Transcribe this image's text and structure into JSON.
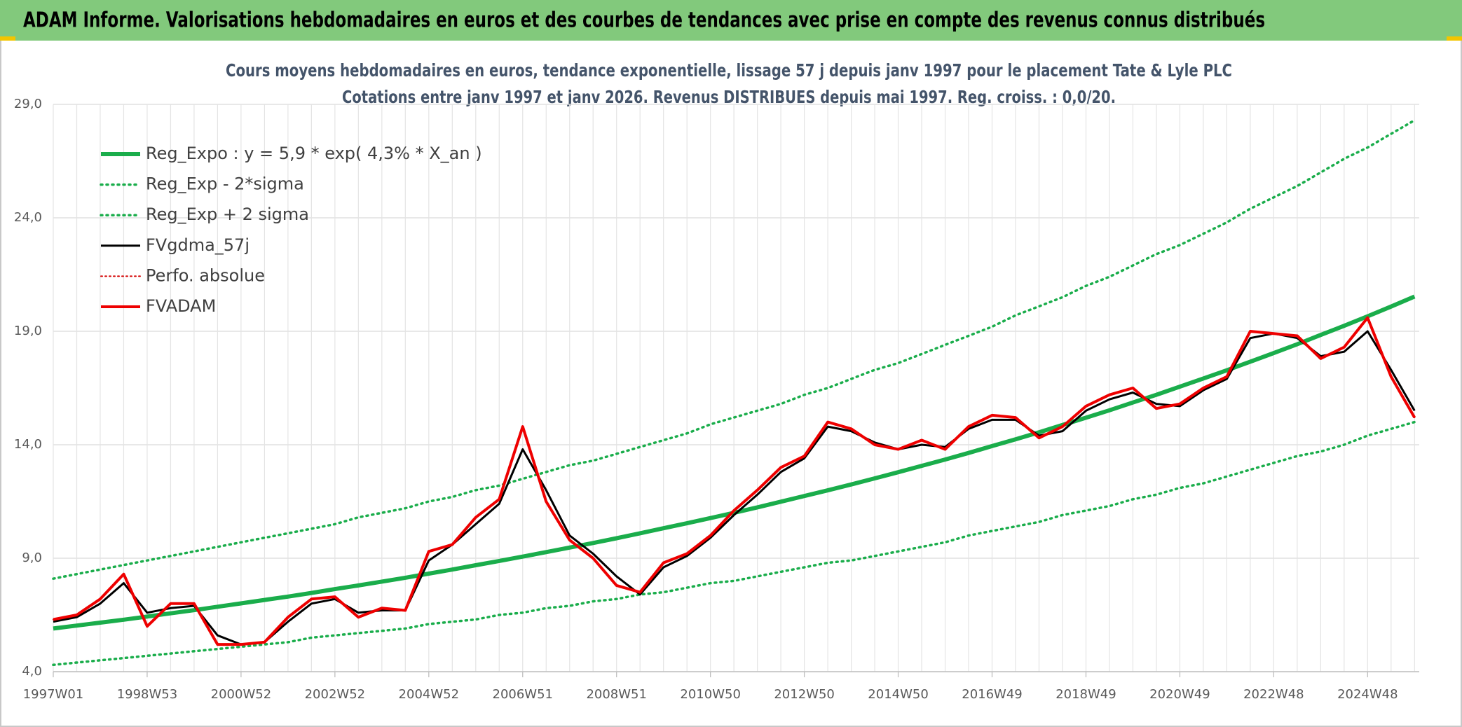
{
  "header": {
    "title": "ADAM Informe. Valorisations hebdomadaires en euros et des courbes de tendances avec prise en compte des revenus connus distribués"
  },
  "chart_data": {
    "type": "line",
    "title": "Cours moyens hebdomadaires en euros, tendance exponentielle, lissage 57 j depuis janv 1997 pour le placement Tate & Lyle PLC",
    "subtitle": "Cotations entre janv 1997 et janv 2026. Revenus DISTRIBUES depuis mai 1997. Reg. croiss. : 0,0/20.",
    "categories": [
      "1997W01",
      null,
      null,
      null,
      "1998W53",
      null,
      null,
      null,
      "2000W52",
      null,
      null,
      null,
      "2002W52",
      null,
      null,
      null,
      "2004W52",
      null,
      null,
      null,
      "2006W51",
      null,
      null,
      null,
      "2008W51",
      null,
      null,
      null,
      "2010W50",
      null,
      null,
      null,
      "2012W50",
      null,
      null,
      null,
      "2014W50",
      null,
      null,
      null,
      "2016W49",
      null,
      null,
      null,
      "2018W49",
      null,
      null,
      null,
      "2020W49",
      null,
      null,
      null,
      "2022W48",
      null,
      null,
      null,
      "2024W48",
      null,
      null
    ],
    "ylim": [
      4,
      29
    ],
    "yticks": [
      {
        "value": 4,
        "label": "4,0"
      },
      {
        "value": 9,
        "label": "9,0"
      },
      {
        "value": 14,
        "label": "14,0"
      },
      {
        "value": 19,
        "label": "19,0"
      },
      {
        "value": 24,
        "label": "24,0"
      },
      {
        "value": 29,
        "label": "29,0"
      }
    ],
    "grid": true,
    "legend": "upper left",
    "series": [
      {
        "name": "Reg_Expo : y = 5,9 * exp( 4,3% *  X_an )",
        "color": "#1aad4b",
        "width": 6,
        "dash": false,
        "values": [
          5.9,
          6.03,
          6.16,
          6.29,
          6.43,
          6.57,
          6.71,
          6.86,
          7.01,
          7.16,
          7.31,
          7.47,
          7.64,
          7.8,
          7.97,
          8.14,
          8.32,
          8.5,
          8.69,
          8.88,
          9.07,
          9.27,
          9.47,
          9.67,
          9.88,
          10.1,
          10.32,
          10.54,
          10.77,
          11.0,
          11.24,
          11.49,
          11.74,
          11.99,
          12.25,
          12.52,
          12.79,
          13.07,
          13.35,
          13.64,
          13.94,
          14.24,
          14.55,
          14.87,
          15.19,
          15.52,
          15.86,
          16.2,
          16.56,
          16.92,
          17.28,
          17.66,
          18.04,
          18.43,
          18.84,
          19.24,
          19.66,
          20.09,
          20.53
        ]
      },
      {
        "name": "Reg_Exp - 2*sigma",
        "color": "#1aad4b",
        "width": 3.5,
        "dash": true,
        "values": [
          4.3,
          4.4,
          4.5,
          4.6,
          4.7,
          4.8,
          4.9,
          5.0,
          5.1,
          5.2,
          5.3,
          5.5,
          5.6,
          5.7,
          5.8,
          5.9,
          6.1,
          6.2,
          6.3,
          6.5,
          6.6,
          6.8,
          6.9,
          7.1,
          7.2,
          7.4,
          7.5,
          7.7,
          7.9,
          8.0,
          8.2,
          8.4,
          8.6,
          8.8,
          8.9,
          9.1,
          9.3,
          9.5,
          9.7,
          10.0,
          10.2,
          10.4,
          10.6,
          10.9,
          11.1,
          11.3,
          11.6,
          11.8,
          12.1,
          12.3,
          12.6,
          12.9,
          13.2,
          13.5,
          13.7,
          14.0,
          14.4,
          14.7,
          15.0
        ]
      },
      {
        "name": "Reg_Exp + 2 sigma",
        "color": "#1aad4b",
        "width": 3.5,
        "dash": true,
        "values": [
          8.1,
          8.3,
          8.5,
          8.7,
          8.9,
          9.1,
          9.3,
          9.5,
          9.7,
          9.9,
          10.1,
          10.3,
          10.5,
          10.8,
          11.0,
          11.2,
          11.5,
          11.7,
          12.0,
          12.2,
          12.5,
          12.8,
          13.1,
          13.3,
          13.6,
          13.9,
          14.2,
          14.5,
          14.9,
          15.2,
          15.5,
          15.8,
          16.2,
          16.5,
          16.9,
          17.3,
          17.6,
          18.0,
          18.4,
          18.8,
          19.2,
          19.7,
          20.1,
          20.5,
          21.0,
          21.4,
          21.9,
          22.4,
          22.8,
          23.3,
          23.8,
          24.4,
          24.9,
          25.4,
          26.0,
          26.6,
          27.1,
          27.7,
          28.3
        ]
      },
      {
        "name": "FVgdma_57j",
        "color": "#000000",
        "width": 3,
        "dash": false,
        "values": [
          6.2,
          6.4,
          7.0,
          7.9,
          6.6,
          6.8,
          6.9,
          5.6,
          5.2,
          5.3,
          6.2,
          7.0,
          7.2,
          6.6,
          6.7,
          6.7,
          8.9,
          9.6,
          10.5,
          11.4,
          13.8,
          12.0,
          10.0,
          9.2,
          8.2,
          7.4,
          8.6,
          9.1,
          9.9,
          10.9,
          11.8,
          12.8,
          13.4,
          14.8,
          14.6,
          14.1,
          13.8,
          14.0,
          13.9,
          14.7,
          15.1,
          15.1,
          14.4,
          14.6,
          15.5,
          16.0,
          16.3,
          15.8,
          15.7,
          16.4,
          16.9,
          18.7,
          18.9,
          18.7,
          17.9,
          18.1,
          19.0,
          17.3,
          15.5
        ]
      },
      {
        "name": "Perfo. absolue",
        "color": "#d40000",
        "width": 2,
        "dash": true,
        "values": [
          6.3,
          6.5,
          7.2,
          8.3,
          6.0,
          7.0,
          7.0,
          5.2,
          5.2,
          5.3,
          6.4,
          7.2,
          7.3,
          6.4,
          6.8,
          6.7,
          9.3,
          9.6,
          10.8,
          11.6,
          14.8,
          11.5,
          9.8,
          9.0,
          7.8,
          7.5,
          8.8,
          9.2,
          10.0,
          11.1,
          12.0,
          13.0,
          13.5,
          15.0,
          14.7,
          14.0,
          13.8,
          14.2,
          13.8,
          14.8,
          15.3,
          15.2,
          14.3,
          14.8,
          15.7,
          16.2,
          16.5,
          15.6,
          15.8,
          16.5,
          17.0,
          19.0,
          18.9,
          18.8,
          17.8,
          18.3,
          19.6,
          17.0,
          15.2
        ]
      },
      {
        "name": "FVADAM",
        "color": "#ee0000",
        "width": 4,
        "dash": false,
        "values": [
          6.3,
          6.5,
          7.2,
          8.3,
          6.0,
          7.0,
          7.0,
          5.2,
          5.2,
          5.3,
          6.4,
          7.2,
          7.3,
          6.4,
          6.8,
          6.7,
          9.3,
          9.6,
          10.8,
          11.6,
          14.8,
          11.5,
          9.8,
          9.0,
          7.8,
          7.5,
          8.8,
          9.2,
          10.0,
          11.1,
          12.0,
          13.0,
          13.5,
          15.0,
          14.7,
          14.0,
          13.8,
          14.2,
          13.8,
          14.8,
          15.3,
          15.2,
          14.3,
          14.8,
          15.7,
          16.2,
          16.5,
          15.6,
          15.8,
          16.5,
          17.0,
          19.0,
          18.9,
          18.8,
          17.8,
          18.3,
          19.6,
          17.0,
          15.2
        ]
      }
    ]
  }
}
